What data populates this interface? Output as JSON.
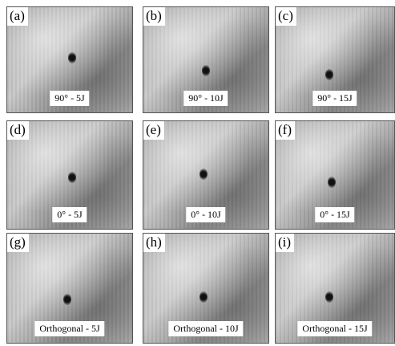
{
  "panels": [
    {
      "letter": "(a)",
      "caption": "90° - 5J"
    },
    {
      "letter": "(b)",
      "caption": "90° - 10J"
    },
    {
      "letter": "(c)",
      "caption": "90° - 15J"
    },
    {
      "letter": "(d)",
      "caption": "0° - 5J"
    },
    {
      "letter": "(e)",
      "caption": "0° - 10J"
    },
    {
      "letter": "(f)",
      "caption": "0° - 15J"
    },
    {
      "letter": "(g)",
      "caption": "Orthogonal - 5J"
    },
    {
      "letter": "(h)",
      "caption": "Orthogonal - 10J"
    },
    {
      "letter": "(i)",
      "caption": "Orthogonal - 15J"
    }
  ]
}
